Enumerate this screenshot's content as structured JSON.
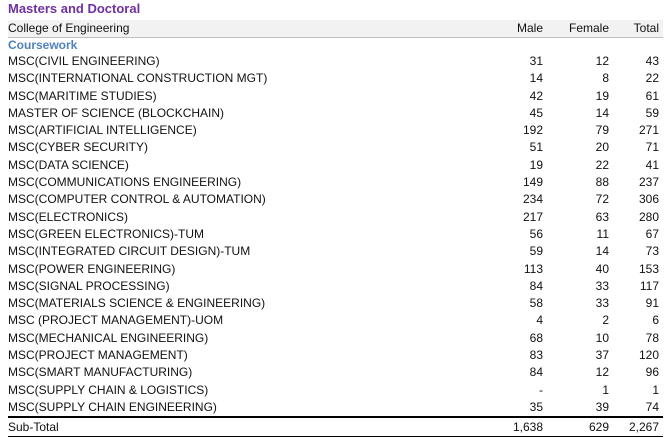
{
  "section_title": "Masters and Doctoral",
  "header": {
    "college": "College of Engineering",
    "male": "Male",
    "female": "Female",
    "total": "Total"
  },
  "subsection": "Coursework",
  "rows": [
    {
      "name": "MSC(CIVIL ENGINEERING)",
      "male": "31",
      "female": "12",
      "total": "43"
    },
    {
      "name": "MSC(INTERNATIONAL CONSTRUCTION MGT)",
      "male": "14",
      "female": "8",
      "total": "22"
    },
    {
      "name": "MSC(MARITIME STUDIES)",
      "male": "42",
      "female": "19",
      "total": "61"
    },
    {
      "name": "MASTER OF SCIENCE (BLOCKCHAIN)",
      "male": "45",
      "female": "14",
      "total": "59"
    },
    {
      "name": "MSC(ARTIFICIAL INTELLIGENCE)",
      "male": "192",
      "female": "79",
      "total": "271"
    },
    {
      "name": "MSC(CYBER SECURITY)",
      "male": "51",
      "female": "20",
      "total": "71"
    },
    {
      "name": "MSC(DATA SCIENCE)",
      "male": "19",
      "female": "22",
      "total": "41"
    },
    {
      "name": "MSC(COMMUNICATIONS ENGINEERING)",
      "male": "149",
      "female": "88",
      "total": "237"
    },
    {
      "name": "MSC(COMPUTER CONTROL & AUTOMATION)",
      "male": "234",
      "female": "72",
      "total": "306"
    },
    {
      "name": "MSC(ELECTRONICS)",
      "male": "217",
      "female": "63",
      "total": "280"
    },
    {
      "name": "MSC(GREEN ELECTRONICS)-TUM",
      "male": "56",
      "female": "11",
      "total": "67"
    },
    {
      "name": "MSC(INTEGRATED CIRCUIT DESIGN)-TUM",
      "male": "59",
      "female": "14",
      "total": "73"
    },
    {
      "name": "MSC(POWER ENGINEERING)",
      "male": "113",
      "female": "40",
      "total": "153"
    },
    {
      "name": "MSC(SIGNAL PROCESSING)",
      "male": "84",
      "female": "33",
      "total": "117"
    },
    {
      "name": "MSC(MATERIALS SCIENCE & ENGINEERING)",
      "male": "58",
      "female": "33",
      "total": "91"
    },
    {
      "name": "MSC (PROJECT MANAGEMENT)-UOM",
      "male": "4",
      "female": "2",
      "total": "6"
    },
    {
      "name": "MSC(MECHANICAL ENGINEERING)",
      "male": "68",
      "female": "10",
      "total": "78"
    },
    {
      "name": "MSC(PROJECT MANAGEMENT)",
      "male": "83",
      "female": "37",
      "total": "120"
    },
    {
      "name": "MSC(SMART MANUFACTURING)",
      "male": "84",
      "female": "12",
      "total": "96"
    },
    {
      "name": "MSC(SUPPLY CHAIN & LOGISTICS)",
      "male": "-",
      "female": "1",
      "total": "1"
    },
    {
      "name": "MSC(SUPPLY CHAIN ENGINEERING)",
      "male": "35",
      "female": "39",
      "total": "74"
    }
  ],
  "subtotal": {
    "label": "Sub-Total",
    "male": "1,638",
    "female": "629",
    "total": "2,267"
  }
}
